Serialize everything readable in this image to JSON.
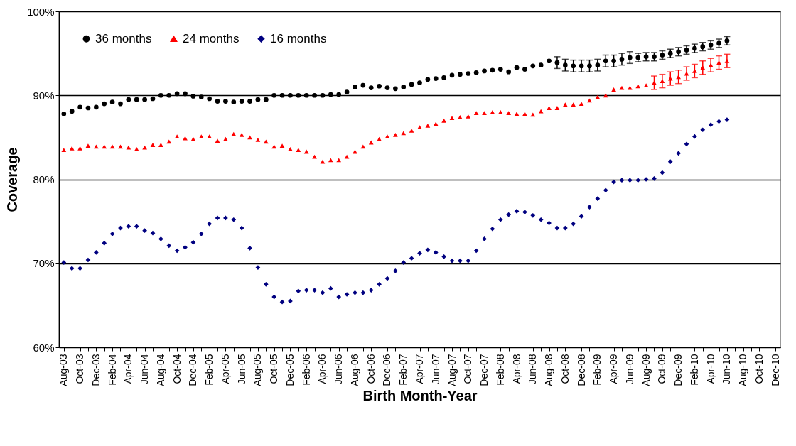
{
  "chart_data": {
    "type": "scatter",
    "xlabel": "Birth Month-Year",
    "ylabel": "Coverage",
    "categories": [
      "Aug-03",
      null,
      "Oct-03",
      null,
      "Dec-03",
      null,
      "Feb-04",
      null,
      "Apr-04",
      null,
      "Jun-04",
      null,
      "Aug-04",
      null,
      "Oct-04",
      null,
      "Dec-04",
      null,
      "Feb-05",
      null,
      "Apr-05",
      null,
      "Jun-05",
      null,
      "Aug-05",
      null,
      "Oct-05",
      null,
      "Dec-05",
      null,
      "Feb-06",
      null,
      "Apr-06",
      null,
      "Jun-06",
      null,
      "Aug-06",
      null,
      "Oct-06",
      null,
      "Dec-06",
      null,
      "Feb-07",
      null,
      "Apr-07",
      null,
      "Jun-07",
      null,
      "Aug-07",
      null,
      "Oct-07",
      null,
      "Dec-07",
      null,
      "Feb-08",
      null,
      "Apr-08",
      null,
      "Jun-08",
      null,
      "Aug-08",
      null,
      "Oct-08",
      null,
      "Dec-08",
      null,
      "Feb-09",
      null,
      "Apr-09",
      null,
      "Jun-09",
      null,
      "Aug-09",
      null,
      "Oct-09",
      null,
      "Dec-09",
      null,
      "Feb-10",
      null,
      "Apr-10",
      null,
      "Jun-10",
      null,
      "Aug-10",
      null,
      "Oct-10",
      null,
      "Dec-10"
    ],
    "ylim": [
      60,
      100
    ],
    "yticks": [
      {
        "value": 60,
        "label": "60%"
      },
      {
        "value": 70,
        "label": "70%"
      },
      {
        "value": 80,
        "label": "80%"
      },
      {
        "value": 90,
        "label": "90%"
      },
      {
        "value": 100,
        "label": "100%"
      }
    ],
    "grid": "y",
    "legend": "top left",
    "series": [
      {
        "name": "36 months",
        "color": "#000000",
        "marker": "circle",
        "values": [
          87.8,
          88.1,
          88.6,
          88.5,
          88.6,
          89.0,
          89.2,
          89.0,
          89.5,
          89.5,
          89.5,
          89.6,
          90.0,
          90.0,
          90.2,
          90.2,
          89.9,
          89.8,
          89.6,
          89.3,
          89.3,
          89.2,
          89.3,
          89.3,
          89.5,
          89.5,
          90.0,
          90.0,
          90.0,
          90.0,
          90.0,
          90.0,
          90.0,
          90.1,
          90.1,
          90.4,
          91.0,
          91.2,
          90.9,
          91.1,
          90.9,
          90.8,
          91.0,
          91.3,
          91.5,
          91.9,
          92.0,
          92.1,
          92.4,
          92.5,
          92.6,
          92.7,
          92.9,
          93.0,
          93.1,
          92.8,
          93.3,
          93.1,
          93.5,
          93.6,
          94.1,
          93.9,
          93.6,
          93.5,
          93.5,
          93.5,
          93.6,
          94.1,
          94.1,
          94.3,
          94.5,
          94.5,
          94.6,
          94.6,
          94.8,
          95.0,
          95.2,
          95.4,
          95.6,
          95.8,
          96.0,
          96.2,
          96.5,
          null,
          null,
          null,
          null,
          null,
          null
        ],
        "errors": [
          null,
          null,
          null,
          null,
          null,
          null,
          null,
          null,
          null,
          null,
          null,
          null,
          null,
          null,
          null,
          null,
          null,
          null,
          null,
          null,
          null,
          null,
          null,
          null,
          null,
          null,
          null,
          null,
          null,
          null,
          null,
          null,
          null,
          null,
          null,
          null,
          null,
          null,
          null,
          null,
          null,
          null,
          null,
          null,
          null,
          null,
          null,
          null,
          null,
          null,
          null,
          null,
          null,
          null,
          null,
          null,
          null,
          null,
          null,
          null,
          null,
          0.7,
          0.7,
          0.7,
          0.7,
          0.7,
          0.7,
          0.7,
          0.7,
          0.7,
          0.7,
          0.5,
          0.5,
          0.5,
          0.5,
          0.5,
          0.5,
          0.5,
          0.5,
          0.5,
          0.5,
          0.5,
          0.5,
          null,
          null,
          null,
          null,
          null,
          null
        ]
      },
      {
        "name": "24 months",
        "color": "#ff0000",
        "marker": "triangle",
        "values": [
          83.5,
          83.7,
          83.7,
          84.0,
          83.9,
          83.9,
          83.9,
          83.9,
          83.8,
          83.6,
          83.8,
          84.1,
          84.1,
          84.5,
          85.1,
          84.9,
          84.8,
          85.1,
          85.1,
          84.6,
          84.8,
          85.4,
          85.3,
          85.0,
          84.7,
          84.5,
          83.9,
          84.0,
          83.6,
          83.5,
          83.3,
          82.7,
          82.1,
          82.3,
          82.3,
          82.7,
          83.3,
          83.9,
          84.4,
          84.8,
          85.1,
          85.3,
          85.5,
          85.8,
          86.2,
          86.4,
          86.6,
          87.0,
          87.3,
          87.4,
          87.5,
          87.9,
          87.9,
          88.0,
          88.0,
          87.9,
          87.8,
          87.8,
          87.7,
          88.1,
          88.5,
          88.5,
          88.9,
          88.9,
          89.0,
          89.4,
          89.8,
          90.0,
          90.7,
          90.9,
          90.9,
          91.1,
          91.2,
          91.5,
          91.7,
          92.0,
          92.2,
          92.6,
          92.9,
          93.3,
          93.6,
          93.9,
          94.1,
          null,
          null,
          null,
          null,
          null,
          null
        ],
        "errors": [
          null,
          null,
          null,
          null,
          null,
          null,
          null,
          null,
          null,
          null,
          null,
          null,
          null,
          null,
          null,
          null,
          null,
          null,
          null,
          null,
          null,
          null,
          null,
          null,
          null,
          null,
          null,
          null,
          null,
          null,
          null,
          null,
          null,
          null,
          null,
          null,
          null,
          null,
          null,
          null,
          null,
          null,
          null,
          null,
          null,
          null,
          null,
          null,
          null,
          null,
          null,
          null,
          null,
          null,
          null,
          null,
          null,
          null,
          null,
          null,
          null,
          null,
          null,
          null,
          null,
          null,
          null,
          null,
          null,
          null,
          null,
          null,
          null,
          0.8,
          0.8,
          0.8,
          0.8,
          0.8,
          0.8,
          0.8,
          0.8,
          0.8,
          0.8,
          null,
          null,
          null,
          null,
          null,
          null
        ]
      },
      {
        "name": "16 months",
        "color": "#000080",
        "marker": "diamond",
        "values": [
          70.1,
          69.4,
          69.4,
          70.4,
          71.3,
          72.4,
          73.5,
          74.2,
          74.4,
          74.4,
          73.9,
          73.6,
          72.9,
          72.1,
          71.5,
          71.9,
          72.5,
          73.5,
          74.7,
          75.4,
          75.4,
          75.2,
          74.2,
          71.8,
          69.5,
          67.5,
          66.0,
          65.4,
          65.5,
          66.7,
          66.8,
          66.8,
          66.5,
          67.0,
          66.0,
          66.3,
          66.5,
          66.5,
          66.8,
          67.5,
          68.2,
          69.1,
          70.1,
          70.6,
          71.2,
          71.6,
          71.3,
          70.8,
          70.3,
          70.3,
          70.3,
          71.5,
          72.9,
          74.1,
          75.2,
          75.8,
          76.2,
          76.1,
          75.7,
          75.2,
          74.8,
          74.2,
          74.2,
          74.7,
          75.6,
          76.7,
          77.7,
          78.7,
          79.7,
          79.9,
          79.9,
          79.9,
          80.0,
          80.1,
          80.8,
          82.1,
          83.1,
          84.2,
          85.1,
          85.9,
          86.5,
          86.9,
          87.1,
          null,
          null,
          null,
          null,
          null,
          null
        ]
      }
    ]
  }
}
